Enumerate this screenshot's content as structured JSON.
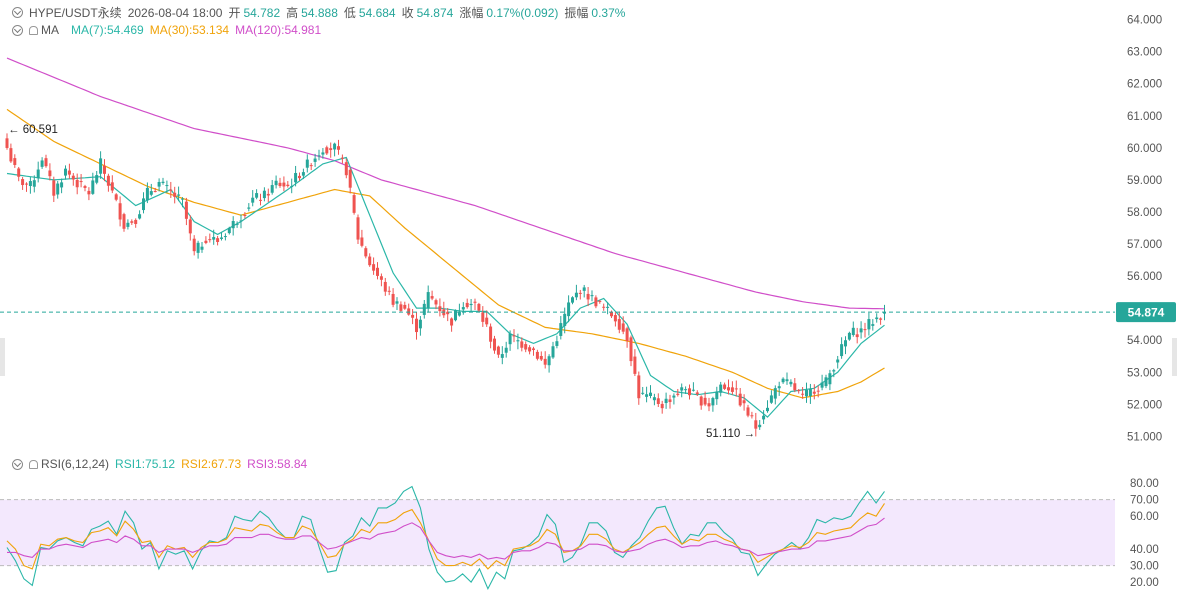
{
  "header": {
    "symbol": "HYPE/USDT永续",
    "datetime": "2026-08-04 18:00",
    "open_label": "开",
    "open": "54.782",
    "high_label": "高",
    "high": "54.888",
    "low_label": "低",
    "low": "54.684",
    "close_label": "收",
    "close": "54.874",
    "change_label": "涨幅",
    "change": "0.17%(0.092)",
    "amp_label": "振幅",
    "amp": "0.37%"
  },
  "ma_legend": {
    "name": "MA",
    "ma7": "MA(7):54.469",
    "ma30": "MA(30):53.134",
    "ma120": "MA(120):54.981"
  },
  "rsi_legend": {
    "name": "RSI(6,12,24)",
    "rsi1": "RSI1:75.12",
    "rsi2": "RSI2:67.73",
    "rsi3": "RSI3:58.84"
  },
  "colors": {
    "up": "#26a69a",
    "down": "#ef5350",
    "ma7": "#2bb7a8",
    "ma30": "#f0a30a",
    "ma120": "#d04ec9",
    "rsi_band": "#f3e8fd"
  },
  "chart_data": [
    {
      "type": "candlestick",
      "ylim": [
        50.7,
        64.3
      ],
      "y_ticks": [
        "64.000",
        "63.000",
        "62.000",
        "61.000",
        "60.000",
        "59.000",
        "58.000",
        "57.000",
        "56.000",
        "55.000",
        "54.000",
        "53.000",
        "52.000",
        "51.000"
      ],
      "last_price": "54.874",
      "last_price_value": 54.874,
      "annotations": {
        "high_label": "← 60.591",
        "high_value": 60.591,
        "low_label": "51.110 →",
        "low_value": 51.11
      },
      "anchors": [
        [
          0,
          60.0
        ],
        [
          3,
          59.0
        ],
        [
          6,
          58.8
        ],
        [
          9,
          59.7
        ],
        [
          12,
          58.6
        ],
        [
          15,
          59.3
        ],
        [
          18,
          58.9
        ],
        [
          21,
          58.6
        ],
        [
          24,
          59.5
        ],
        [
          27,
          58.6
        ],
        [
          30,
          57.6
        ],
        [
          33,
          57.8
        ],
        [
          36,
          58.6
        ],
        [
          39,
          58.9
        ],
        [
          42,
          58.6
        ],
        [
          45,
          58.3
        ],
        [
          48,
          56.7
        ],
        [
          51,
          57.2
        ],
        [
          54,
          57.1
        ],
        [
          57,
          57.5
        ],
        [
          60,
          57.9
        ],
        [
          63,
          58.4
        ],
        [
          66,
          58.5
        ],
        [
          69,
          58.9
        ],
        [
          72,
          58.8
        ],
        [
          75,
          59.2
        ],
        [
          78,
          59.6
        ],
        [
          81,
          60.0
        ],
        [
          84,
          60.0
        ],
        [
          87,
          59.3
        ],
        [
          90,
          57.2
        ],
        [
          93,
          56.4
        ],
        [
          96,
          55.8
        ],
        [
          99,
          55.2
        ],
        [
          102,
          55.0
        ],
        [
          105,
          54.4
        ],
        [
          108,
          55.4
        ],
        [
          111,
          55.0
        ],
        [
          114,
          54.6
        ],
        [
          117,
          55.2
        ],
        [
          120,
          55.1
        ],
        [
          123,
          54.4
        ],
        [
          126,
          53.4
        ],
        [
          129,
          54.1
        ],
        [
          132,
          53.9
        ],
        [
          135,
          53.7
        ],
        [
          138,
          53.2
        ],
        [
          141,
          54.1
        ],
        [
          144,
          55.1
        ],
        [
          147,
          55.6
        ],
        [
          150,
          55.3
        ],
        [
          153,
          55.0
        ],
        [
          156,
          54.7
        ],
        [
          159,
          54.1
        ],
        [
          162,
          52.3
        ],
        [
          165,
          52.2
        ],
        [
          168,
          52.0
        ],
        [
          171,
          52.3
        ],
        [
          174,
          52.5
        ],
        [
          177,
          52.2
        ],
        [
          180,
          52.0
        ],
        [
          183,
          52.6
        ],
        [
          186,
          52.5
        ],
        [
          189,
          51.9
        ],
        [
          192,
          51.3
        ],
        [
          195,
          52.0
        ],
        [
          198,
          52.7
        ],
        [
          201,
          52.6
        ],
        [
          204,
          52.2
        ],
        [
          207,
          52.5
        ],
        [
          210,
          52.7
        ],
        [
          213,
          53.5
        ],
        [
          216,
          54.2
        ],
        [
          219,
          54.3
        ],
        [
          222,
          54.6
        ],
        [
          225,
          54.874
        ]
      ],
      "ma7_anchors": [
        [
          0,
          59.2
        ],
        [
          12,
          59.0
        ],
        [
          24,
          59.1
        ],
        [
          33,
          58.2
        ],
        [
          42,
          58.7
        ],
        [
          48,
          57.7
        ],
        [
          54,
          57.3
        ],
        [
          60,
          57.7
        ],
        [
          72,
          58.7
        ],
        [
          81,
          59.5
        ],
        [
          87,
          59.7
        ],
        [
          93,
          57.9
        ],
        [
          99,
          56.1
        ],
        [
          105,
          55.0
        ],
        [
          111,
          55.0
        ],
        [
          117,
          54.9
        ],
        [
          123,
          54.9
        ],
        [
          129,
          54.2
        ],
        [
          135,
          53.9
        ],
        [
          141,
          54.2
        ],
        [
          147,
          55.0
        ],
        [
          153,
          55.3
        ],
        [
          159,
          54.5
        ],
        [
          165,
          52.9
        ],
        [
          171,
          52.4
        ],
        [
          177,
          52.3
        ],
        [
          183,
          52.4
        ],
        [
          189,
          52.2
        ],
        [
          195,
          51.6
        ],
        [
          201,
          52.4
        ],
        [
          207,
          52.5
        ],
        [
          213,
          53.0
        ],
        [
          219,
          53.9
        ],
        [
          225,
          54.469
        ]
      ],
      "ma30_anchors": [
        [
          0,
          61.2
        ],
        [
          12,
          60.2
        ],
        [
          24,
          59.5
        ],
        [
          36,
          58.8
        ],
        [
          48,
          58.3
        ],
        [
          60,
          57.9
        ],
        [
          72,
          58.3
        ],
        [
          84,
          58.7
        ],
        [
          93,
          58.5
        ],
        [
          102,
          57.5
        ],
        [
          114,
          56.3
        ],
        [
          126,
          55.1
        ],
        [
          138,
          54.4
        ],
        [
          150,
          54.2
        ],
        [
          162,
          53.9
        ],
        [
          174,
          53.5
        ],
        [
          186,
          53.0
        ],
        [
          195,
          52.5
        ],
        [
          204,
          52.2
        ],
        [
          213,
          52.4
        ],
        [
          219,
          52.7
        ],
        [
          225,
          53.134
        ]
      ],
      "ma120_anchors": [
        [
          0,
          62.8
        ],
        [
          12,
          62.2
        ],
        [
          24,
          61.6
        ],
        [
          36,
          61.1
        ],
        [
          48,
          60.6
        ],
        [
          60,
          60.3
        ],
        [
          72,
          60.0
        ],
        [
          84,
          59.6
        ],
        [
          96,
          59.0
        ],
        [
          108,
          58.6
        ],
        [
          120,
          58.2
        ],
        [
          132,
          57.7
        ],
        [
          144,
          57.2
        ],
        [
          156,
          56.7
        ],
        [
          168,
          56.3
        ],
        [
          180,
          55.9
        ],
        [
          192,
          55.5
        ],
        [
          204,
          55.2
        ],
        [
          216,
          55.0
        ],
        [
          225,
          54.981
        ]
      ]
    },
    {
      "type": "line",
      "ylim": [
        14,
        88
      ],
      "y_ticks": [
        "80.00",
        "70.00",
        "60.00",
        "40.00",
        "30.00",
        "20.00"
      ],
      "band": [
        30,
        70
      ],
      "series": [
        {
          "name": "RSI1",
          "values": [
            41,
            33,
            22,
            18,
            41,
            40,
            45,
            47,
            44,
            42,
            52,
            54,
            57,
            49,
            63,
            56,
            40,
            44,
            28,
            39,
            37,
            39,
            28,
            39,
            45,
            44,
            47,
            60,
            58,
            57,
            63,
            59,
            52,
            47,
            47,
            60,
            58,
            41,
            26,
            27,
            44,
            48,
            59,
            54,
            65,
            65,
            68,
            75,
            78,
            65,
            40,
            26,
            20,
            21,
            25,
            20,
            28,
            16,
            26,
            22,
            39,
            40,
            43,
            48,
            61,
            55,
            32,
            35,
            43,
            56,
            56,
            51,
            38,
            35,
            42,
            47,
            57,
            65,
            66,
            53,
            43,
            49,
            48,
            56,
            56,
            50,
            46,
            38,
            37,
            24,
            31,
            37,
            40,
            44,
            40,
            47,
            58,
            56,
            59,
            58,
            60,
            68,
            75,
            68,
            75
          ]
        },
        {
          "name": "RSI2",
          "values": [
            45,
            40,
            30,
            28,
            43,
            42,
            46,
            47,
            45,
            44,
            50,
            51,
            53,
            48,
            57,
            52,
            44,
            45,
            35,
            42,
            40,
            41,
            35,
            41,
            44,
            44,
            46,
            53,
            52,
            51,
            55,
            54,
            50,
            47,
            47,
            54,
            52,
            44,
            35,
            36,
            43,
            46,
            52,
            50,
            56,
            56,
            58,
            62,
            64,
            56,
            45,
            34,
            30,
            30,
            32,
            30,
            34,
            28,
            33,
            30,
            40,
            41,
            42,
            45,
            52,
            49,
            38,
            39,
            42,
            49,
            49,
            46,
            40,
            38,
            41,
            44,
            49,
            53,
            54,
            48,
            43,
            46,
            45,
            49,
            49,
            46,
            44,
            40,
            39,
            32,
            35,
            38,
            40,
            42,
            41,
            44,
            50,
            49,
            51,
            52,
            53,
            58,
            62,
            60,
            67.73
          ]
        },
        {
          "name": "RSI3",
          "values": [
            38,
            38,
            36,
            35,
            40,
            40,
            42,
            43,
            42,
            41,
            44,
            45,
            46,
            44,
            48,
            46,
            42,
            42,
            38,
            40,
            40,
            40,
            38,
            40,
            42,
            42,
            43,
            47,
            47,
            47,
            49,
            49,
            47,
            46,
            46,
            48,
            48,
            44,
            40,
            41,
            43,
            45,
            47,
            46,
            49,
            50,
            51,
            54,
            56,
            53,
            45,
            38,
            36,
            35,
            36,
            35,
            37,
            34,
            35,
            34,
            38,
            39,
            39,
            41,
            44,
            43,
            39,
            39,
            40,
            43,
            43,
            42,
            39,
            38,
            39,
            40,
            43,
            45,
            46,
            44,
            41,
            42,
            42,
            44,
            45,
            43,
            42,
            40,
            39,
            36,
            37,
            38,
            39,
            40,
            40,
            41,
            45,
            45,
            46,
            47,
            48,
            51,
            54,
            55,
            58.84
          ]
        }
      ]
    }
  ]
}
